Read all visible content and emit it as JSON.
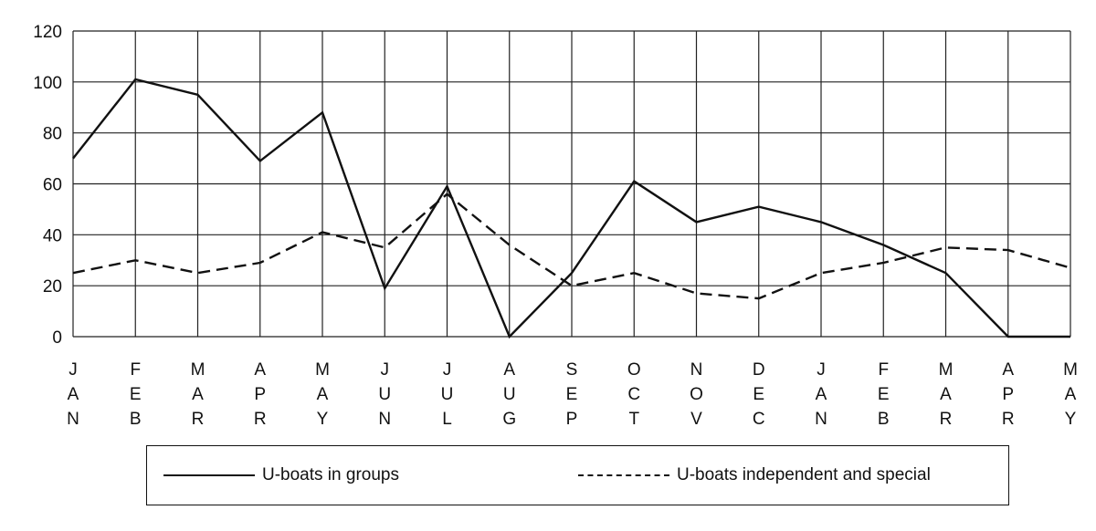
{
  "chart_data": {
    "type": "line",
    "categories": [
      [
        "J",
        "A",
        "N"
      ],
      [
        "F",
        "E",
        "B"
      ],
      [
        "M",
        "A",
        "R"
      ],
      [
        "A",
        "P",
        "R"
      ],
      [
        "M",
        "A",
        "Y"
      ],
      [
        "J",
        "U",
        "N"
      ],
      [
        "J",
        "U",
        "L"
      ],
      [
        "A",
        "U",
        "G"
      ],
      [
        "S",
        "E",
        "P"
      ],
      [
        "O",
        "C",
        "T"
      ],
      [
        "N",
        "O",
        "V"
      ],
      [
        "D",
        "E",
        "C"
      ],
      [
        "J",
        "A",
        "N"
      ],
      [
        "F",
        "E",
        "B"
      ],
      [
        "M",
        "A",
        "R"
      ],
      [
        "A",
        "P",
        "R"
      ],
      [
        "M",
        "A",
        "Y"
      ]
    ],
    "series": [
      {
        "name": "U-boats in groups",
        "style": "solid",
        "color": "#111111",
        "values": [
          70,
          101,
          95,
          69,
          88,
          19,
          59,
          0,
          25,
          61,
          45,
          51,
          45,
          36,
          25,
          0,
          0
        ]
      },
      {
        "name": "U-boats independent and special",
        "style": "dashed",
        "color": "#111111",
        "values": [
          25,
          30,
          25,
          29,
          41,
          35,
          56,
          36,
          20,
          25,
          17,
          15,
          25,
          29,
          35,
          34,
          27
        ]
      }
    ],
    "ylim": [
      0,
      120
    ],
    "yticks": [
      0,
      20,
      40,
      60,
      80,
      100,
      120
    ],
    "grid": true,
    "legend": "bottom"
  }
}
